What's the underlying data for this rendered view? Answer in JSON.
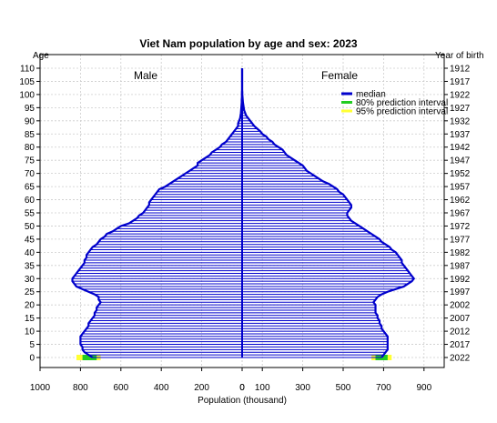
{
  "chart_data": {
    "type": "bar",
    "orientation": "horizontal-population-pyramid",
    "title": "Viet Nam population by age and sex: 2023",
    "xlabel": "Population (thousand)",
    "ylabel_left": "Age",
    "ylabel_right": "Year of birth",
    "male_label": "Male",
    "female_label": "Female",
    "grid": true,
    "legend_position": "top-right",
    "legend": [
      {
        "label": "median",
        "color": "#0000cc"
      },
      {
        "label": "80% prediction interval",
        "color": "#22cc22"
      },
      {
        "label": "95% prediction interval",
        "color": "#ffff33"
      }
    ],
    "colors": {
      "median": "#0000cc",
      "pi80": "#22cc22",
      "pi95": "#ffff33",
      "grid": "#cccccc"
    },
    "male_ticks": [
      1000,
      800,
      600,
      400,
      200,
      0
    ],
    "female_ticks": [
      0,
      100,
      300,
      500,
      700,
      900
    ],
    "age_ticks": [
      0,
      5,
      10,
      15,
      20,
      25,
      30,
      35,
      40,
      45,
      50,
      55,
      60,
      65,
      70,
      75,
      80,
      85,
      90,
      95,
      100,
      105,
      110
    ],
    "birth_year_ticks": [
      "2022",
      "2017",
      "2012",
      "2007",
      "2002",
      "1997",
      "1992",
      "1987",
      "1982",
      "1977",
      "1972",
      "1967",
      "1962",
      "1957",
      "1952",
      "1947",
      "1942",
      "1937",
      "1932",
      "1927",
      "1922",
      "1917",
      "1912"
    ],
    "xlim_male": [
      0,
      1000
    ],
    "xlim_female": [
      0,
      1000
    ],
    "ylim": [
      0,
      110
    ],
    "ages": [
      0,
      1,
      2,
      3,
      4,
      5,
      6,
      7,
      8,
      9,
      10,
      11,
      12,
      13,
      14,
      15,
      16,
      17,
      18,
      19,
      20,
      21,
      22,
      23,
      24,
      25,
      26,
      27,
      28,
      29,
      30,
      31,
      32,
      33,
      34,
      35,
      36,
      37,
      38,
      39,
      40,
      41,
      42,
      43,
      44,
      45,
      46,
      47,
      48,
      49,
      50,
      51,
      52,
      53,
      54,
      55,
      56,
      57,
      58,
      59,
      60,
      61,
      62,
      63,
      64,
      65,
      66,
      67,
      68,
      69,
      70,
      71,
      72,
      73,
      74,
      75,
      76,
      77,
      78,
      79,
      80,
      81,
      82,
      83,
      84,
      85,
      86,
      87,
      88,
      89,
      90,
      91,
      92,
      93,
      94,
      95,
      96,
      97,
      98,
      99,
      100,
      101,
      102,
      103,
      104,
      105,
      106,
      107,
      108,
      109,
      110
    ],
    "male": [
      740,
      760,
      780,
      790,
      790,
      800,
      800,
      800,
      800,
      790,
      780,
      770,
      760,
      760,
      750,
      740,
      730,
      730,
      720,
      720,
      710,
      700,
      710,
      710,
      730,
      760,
      790,
      820,
      830,
      840,
      840,
      830,
      820,
      810,
      800,
      790,
      780,
      780,
      770,
      770,
      760,
      750,
      740,
      720,
      710,
      700,
      680,
      670,
      640,
      620,
      600,
      560,
      540,
      520,
      510,
      490,
      480,
      470,
      460,
      460,
      450,
      440,
      430,
      420,
      410,
      380,
      360,
      340,
      320,
      300,
      280,
      260,
      240,
      220,
      220,
      200,
      180,
      160,
      150,
      130,
      110,
      100,
      80,
      70,
      60,
      50,
      40,
      30,
      20,
      20,
      15,
      10,
      8,
      6,
      5,
      4,
      3,
      2,
      2,
      1,
      1,
      1,
      0,
      0,
      0,
      0,
      0,
      0,
      0,
      0,
      0
    ],
    "female": [
      690,
      700,
      710,
      720,
      720,
      720,
      720,
      720,
      720,
      710,
      700,
      690,
      690,
      680,
      680,
      670,
      670,
      660,
      660,
      660,
      660,
      650,
      660,
      670,
      690,
      720,
      760,
      800,
      820,
      840,
      850,
      840,
      830,
      820,
      810,
      800,
      790,
      790,
      780,
      770,
      760,
      740,
      730,
      710,
      690,
      680,
      660,
      640,
      620,
      600,
      580,
      560,
      540,
      530,
      520,
      520,
      530,
      540,
      540,
      530,
      520,
      510,
      500,
      480,
      470,
      450,
      430,
      400,
      380,
      360,
      340,
      320,
      310,
      300,
      280,
      260,
      240,
      220,
      210,
      200,
      180,
      160,
      150,
      130,
      120,
      100,
      90,
      75,
      60,
      50,
      40,
      30,
      20,
      15,
      10,
      8,
      6,
      4,
      3,
      2,
      1,
      1,
      0,
      0,
      0,
      0,
      0,
      0,
      0,
      0,
      0
    ],
    "male_interval_age0": {
      "pi80": [
        720,
        790
      ],
      "pi95": [
        700,
        820
      ]
    },
    "female_interval_age0": {
      "pi80": [
        660,
        720
      ],
      "pi95": [
        640,
        740
      ]
    }
  }
}
